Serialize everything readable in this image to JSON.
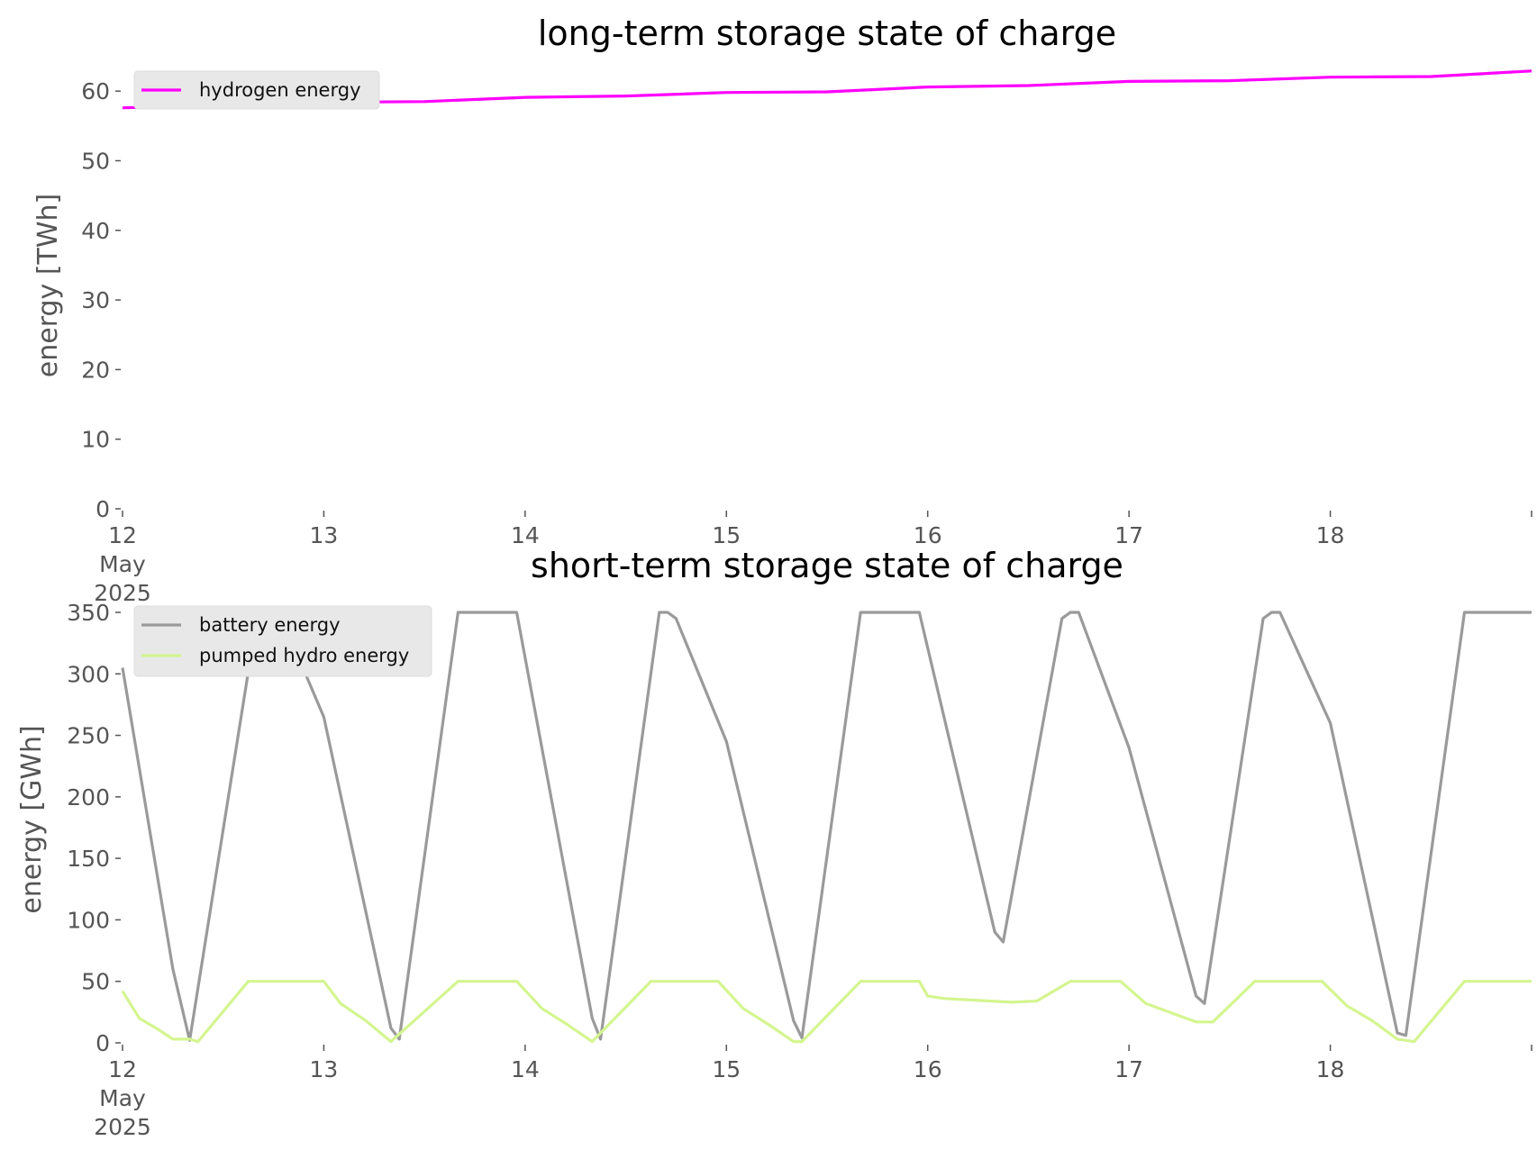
{
  "chart_data": [
    {
      "type": "line",
      "title": "long-term storage state of charge",
      "xlabel": "",
      "ylabel": "energy [TWh]",
      "ylim": [
        0,
        63
      ],
      "yticks": [
        0,
        10,
        20,
        30,
        40,
        50,
        60
      ],
      "x_range": [
        "2025-05-12",
        "2025-05-19"
      ],
      "xtick_labels": [
        {
          "lines": [
            "12",
            "May",
            "2025"
          ]
        },
        {
          "lines": [
            "13"
          ]
        },
        {
          "lines": [
            "14"
          ]
        },
        {
          "lines": [
            "15"
          ]
        },
        {
          "lines": [
            "16"
          ]
        },
        {
          "lines": [
            "17"
          ]
        },
        {
          "lines": [
            "18"
          ]
        },
        {
          "lines": [
            ""
          ]
        }
      ],
      "legend_position": "top-left",
      "grid": false,
      "series": [
        {
          "name": "hydrogen energy",
          "color": "#ff00ff",
          "x": [
            "2025-05-12 00:00",
            "2025-05-12 12:00",
            "2025-05-13 00:00",
            "2025-05-13 12:00",
            "2025-05-14 00:00",
            "2025-05-14 12:00",
            "2025-05-15 00:00",
            "2025-05-15 12:00",
            "2025-05-16 00:00",
            "2025-05-16 12:00",
            "2025-05-17 00:00",
            "2025-05-17 12:00",
            "2025-05-18 00:00",
            "2025-05-18 12:00",
            "2025-05-19 00:00"
          ],
          "y": [
            57.6,
            57.9,
            58.4,
            58.5,
            59.1,
            59.3,
            59.8,
            59.9,
            60.6,
            60.8,
            61.4,
            61.5,
            62.0,
            62.1,
            62.9
          ]
        }
      ]
    },
    {
      "type": "line",
      "title": "short-term storage state of charge",
      "xlabel": "",
      "ylabel": "energy [GWh]",
      "ylim": [
        0,
        350
      ],
      "yticks": [
        0,
        50,
        100,
        150,
        200,
        250,
        300,
        350
      ],
      "x_range": [
        "2025-05-12",
        "2025-05-19"
      ],
      "xtick_labels": [
        {
          "lines": [
            "12",
            "May",
            "2025"
          ]
        },
        {
          "lines": [
            "13"
          ]
        },
        {
          "lines": [
            "14"
          ]
        },
        {
          "lines": [
            "15"
          ]
        },
        {
          "lines": [
            "16"
          ]
        },
        {
          "lines": [
            "17"
          ]
        },
        {
          "lines": [
            "18"
          ]
        },
        {
          "lines": [
            ""
          ]
        }
      ],
      "legend_position": "top-left",
      "grid": false,
      "series": [
        {
          "name": "battery energy",
          "color": "#9a9a9a",
          "x": [
            "2025-05-12 00:00",
            "2025-05-12 06:00",
            "2025-05-12 08:00",
            "2025-05-12 16:00",
            "2025-05-12 19:00",
            "2025-05-13 00:00",
            "2025-05-13 08:00",
            "2025-05-13 09:00",
            "2025-05-13 16:00",
            "2025-05-13 17:00",
            "2025-05-13 23:00",
            "2025-05-14 08:00",
            "2025-05-14 09:00",
            "2025-05-14 16:00",
            "2025-05-14 17:00",
            "2025-05-14 18:00",
            "2025-05-15 00:00",
            "2025-05-15 08:00",
            "2025-05-15 09:00",
            "2025-05-15 16:00",
            "2025-05-15 17:00",
            "2025-05-15 23:00",
            "2025-05-16 08:00",
            "2025-05-16 09:00",
            "2025-05-16 16:00",
            "2025-05-16 17:00",
            "2025-05-16 18:00",
            "2025-05-17 00:00",
            "2025-05-17 08:00",
            "2025-05-17 09:00",
            "2025-05-17 16:00",
            "2025-05-17 17:00",
            "2025-05-17 18:00",
            "2025-05-18 00:00",
            "2025-05-18 08:00",
            "2025-05-18 09:00",
            "2025-05-18 16:00",
            "2025-05-19 00:00"
          ],
          "y": [
            305,
            60,
            2,
            345,
            345,
            265,
            12,
            3,
            350,
            350,
            350,
            20,
            3,
            350,
            350,
            345,
            245,
            18,
            4,
            350,
            350,
            350,
            90,
            82,
            345,
            350,
            350,
            240,
            38,
            32,
            345,
            350,
            350,
            260,
            8,
            6,
            350,
            350
          ]
        },
        {
          "name": "pumped hydro energy",
          "color": "#d4f58f",
          "x": [
            "2025-05-12 00:00",
            "2025-05-12 02:00",
            "2025-05-12 04:00",
            "2025-05-12 06:00",
            "2025-05-12 08:00",
            "2025-05-12 09:00",
            "2025-05-12 15:00",
            "2025-05-13 00:00",
            "2025-05-13 02:00",
            "2025-05-13 05:00",
            "2025-05-13 08:00",
            "2025-05-13 16:00",
            "2025-05-13 23:00",
            "2025-05-14 02:00",
            "2025-05-14 05:00",
            "2025-05-14 08:00",
            "2025-05-14 15:00",
            "2025-05-14 23:00",
            "2025-05-15 02:00",
            "2025-05-15 05:00",
            "2025-05-15 08:00",
            "2025-05-15 09:00",
            "2025-05-15 16:00",
            "2025-05-15 23:00",
            "2025-05-16 00:00",
            "2025-05-16 02:00",
            "2025-05-16 10:00",
            "2025-05-16 13:00",
            "2025-05-16 17:00",
            "2025-05-16 23:00",
            "2025-05-17 02:00",
            "2025-05-17 06:00",
            "2025-05-17 08:00",
            "2025-05-17 10:00",
            "2025-05-17 15:00",
            "2025-05-17 23:00",
            "2025-05-18 02:00",
            "2025-05-18 05:00",
            "2025-05-18 08:00",
            "2025-05-18 10:00",
            "2025-05-18 16:00",
            "2025-05-19 00:00"
          ],
          "y": [
            42,
            20,
            12,
            3,
            3,
            1,
            50,
            50,
            32,
            18,
            1,
            50,
            50,
            28,
            15,
            1,
            50,
            50,
            28,
            15,
            1,
            1,
            50,
            50,
            38,
            36,
            33,
            34,
            50,
            50,
            32,
            22,
            17,
            17,
            50,
            50,
            30,
            18,
            3,
            1,
            50,
            50
          ]
        }
      ]
    }
  ]
}
